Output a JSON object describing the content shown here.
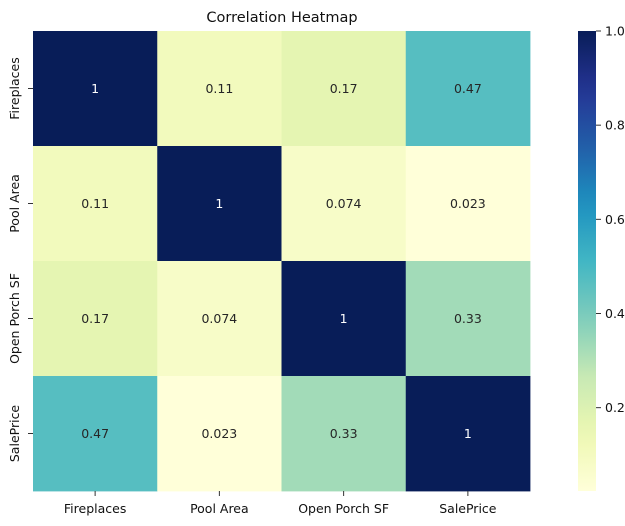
{
  "chart_data": {
    "type": "heatmap",
    "title": "Correlation Heatmap",
    "xlabel": "",
    "ylabel": "",
    "x_categories": [
      "Fireplaces",
      "Pool Area",
      "Open Porch SF",
      "SalePrice"
    ],
    "y_categories": [
      "Fireplaces",
      "Pool Area",
      "Open Porch SF",
      "SalePrice"
    ],
    "values": [
      [
        1,
        0.11,
        0.17,
        0.47
      ],
      [
        0.11,
        1,
        0.074,
        0.023
      ],
      [
        0.17,
        0.074,
        1,
        0.33
      ],
      [
        0.47,
        0.023,
        0.33,
        1
      ]
    ],
    "annotations": [
      [
        "1",
        "0.11",
        "0.17",
        "0.47"
      ],
      [
        "0.11",
        "1",
        "0.074",
        "0.023"
      ],
      [
        "0.17",
        "0.074",
        "1",
        "0.33"
      ],
      [
        "0.47",
        "0.023",
        "0.33",
        "1"
      ]
    ],
    "colormap": "YlGnBu",
    "colorbar": {
      "vmin": 0.023,
      "vmax": 1.0,
      "ticks": [
        0.2,
        0.4,
        0.6,
        0.8,
        1.0
      ],
      "tick_labels": [
        "0.2",
        "0.4",
        "0.6",
        "0.8",
        "1.0"
      ]
    },
    "grid": false
  }
}
